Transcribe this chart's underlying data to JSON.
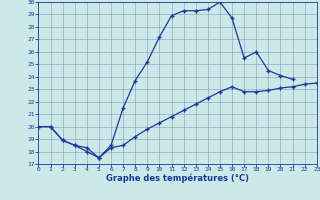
{
  "title": "Graphe des températures (°C)",
  "bg_color": "#cce8e8",
  "line_color": "#1a3a9a",
  "xlim": [
    0,
    23
  ],
  "ylim": [
    17,
    30
  ],
  "xticks": [
    0,
    1,
    2,
    3,
    4,
    5,
    6,
    7,
    8,
    9,
    10,
    11,
    12,
    13,
    14,
    15,
    16,
    17,
    18,
    19,
    20,
    21,
    22,
    23
  ],
  "yticks": [
    17,
    18,
    19,
    20,
    21,
    22,
    23,
    24,
    25,
    26,
    27,
    28,
    29,
    30
  ],
  "series1_x": [
    0,
    1,
    2,
    3,
    4,
    5,
    6,
    7,
    8,
    9,
    10,
    11,
    12,
    13,
    14,
    15,
    16,
    17,
    18,
    19,
    20,
    21,
    22
  ],
  "series1_y": [
    20.0,
    20.0,
    18.9,
    18.5,
    18.0,
    17.5,
    18.5,
    21.5,
    23.7,
    25.2,
    27.2,
    28.9,
    29.3,
    29.3,
    29.4,
    30.0,
    28.7,
    25.5,
    26.0,
    24.5,
    24.1,
    23.8,
    null
  ],
  "series2_x": [
    0,
    1,
    2,
    3,
    4,
    5,
    6,
    7,
    8,
    9,
    10,
    11,
    12,
    13,
    14,
    15,
    16,
    17,
    18,
    19,
    20,
    21,
    22,
    23
  ],
  "series2_y": [
    20.0,
    20.0,
    18.9,
    18.5,
    18.3,
    17.5,
    18.3,
    18.5,
    19.2,
    19.8,
    20.3,
    20.8,
    21.3,
    21.8,
    22.3,
    22.8,
    23.2,
    22.8,
    22.8,
    22.9,
    23.1,
    23.2,
    23.4,
    23.5
  ]
}
